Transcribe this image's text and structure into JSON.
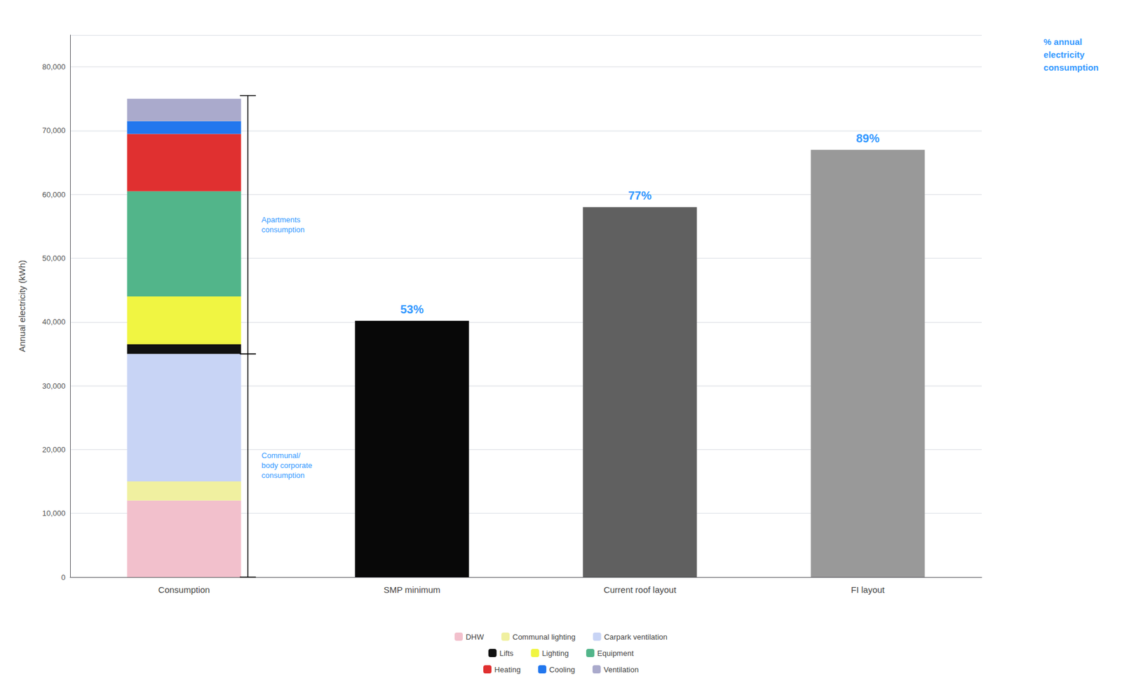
{
  "chart_data": {
    "type": "bar",
    "stacked": true,
    "categories": [
      "Consumption",
      "SMP minimum",
      "Current roof layout",
      "FI layout"
    ],
    "series": [
      {
        "name": "DHW",
        "color": "#f2c0cc",
        "values": [
          12000,
          null,
          null,
          null
        ]
      },
      {
        "name": "Communal lighting",
        "color": "#f0f0a0",
        "values": [
          3000,
          null,
          null,
          null
        ]
      },
      {
        "name": "Carpark ventilation",
        "color": "#c8d4f5",
        "values": [
          20000,
          null,
          null,
          null
        ]
      },
      {
        "name": "Lifts",
        "color": "#111111",
        "values": [
          1500,
          null,
          null,
          null
        ]
      },
      {
        "name": "Lighting",
        "color": "#f0f542",
        "values": [
          7500,
          null,
          null,
          null
        ]
      },
      {
        "name": "Equipment",
        "color": "#52b58a",
        "values": [
          16500,
          null,
          null,
          null
        ]
      },
      {
        "name": "Heating",
        "color": "#e03030",
        "values": [
          9000,
          null,
          null,
          null
        ]
      },
      {
        "name": "Cooling",
        "color": "#2277ee",
        "values": [
          2000,
          null,
          null,
          null
        ]
      },
      {
        "name": "Ventilation",
        "color": "#aaaacc",
        "values": [
          3500,
          null,
          null,
          null
        ]
      },
      {
        "colors": [
          null,
          "#080808",
          "#606060",
          "#999999"
        ],
        "values": [
          null,
          40200,
          58000,
          67000
        ]
      }
    ],
    "percent_labels": {
      "SMP minimum": "53%",
      "Current roof layout": "77%",
      "FI layout": "89%"
    },
    "brackets": [
      {
        "category": "Consumption",
        "from": 0,
        "to": 35000,
        "label": "Communal/\nbody corporate\nconsumption"
      },
      {
        "category": "Consumption",
        "from": 35000,
        "to": 75500,
        "label": "Apartments\nconsumption"
      }
    ],
    "note": "% annual\nelectricity\nconsumption",
    "annotation_color": "#3399ff",
    "ylabel": "Annual electricity (kWh)",
    "ylim": [
      0,
      85000
    ],
    "yticks": [
      0,
      {
        "value": 10000,
        "label": "10,000"
      },
      {
        "value": 20000,
        "label": "20,000"
      },
      {
        "value": 30000,
        "label": "30,000"
      },
      {
        "value": 40000,
        "label": "40,000"
      },
      {
        "value": 50000,
        "label": "50,000"
      },
      {
        "value": 60000,
        "label": "60,000"
      },
      {
        "value": 70000,
        "label": "70,000"
      },
      {
        "value": 80000,
        "label": "80,000"
      }
    ],
    "grid": true,
    "legend": "bottom"
  }
}
